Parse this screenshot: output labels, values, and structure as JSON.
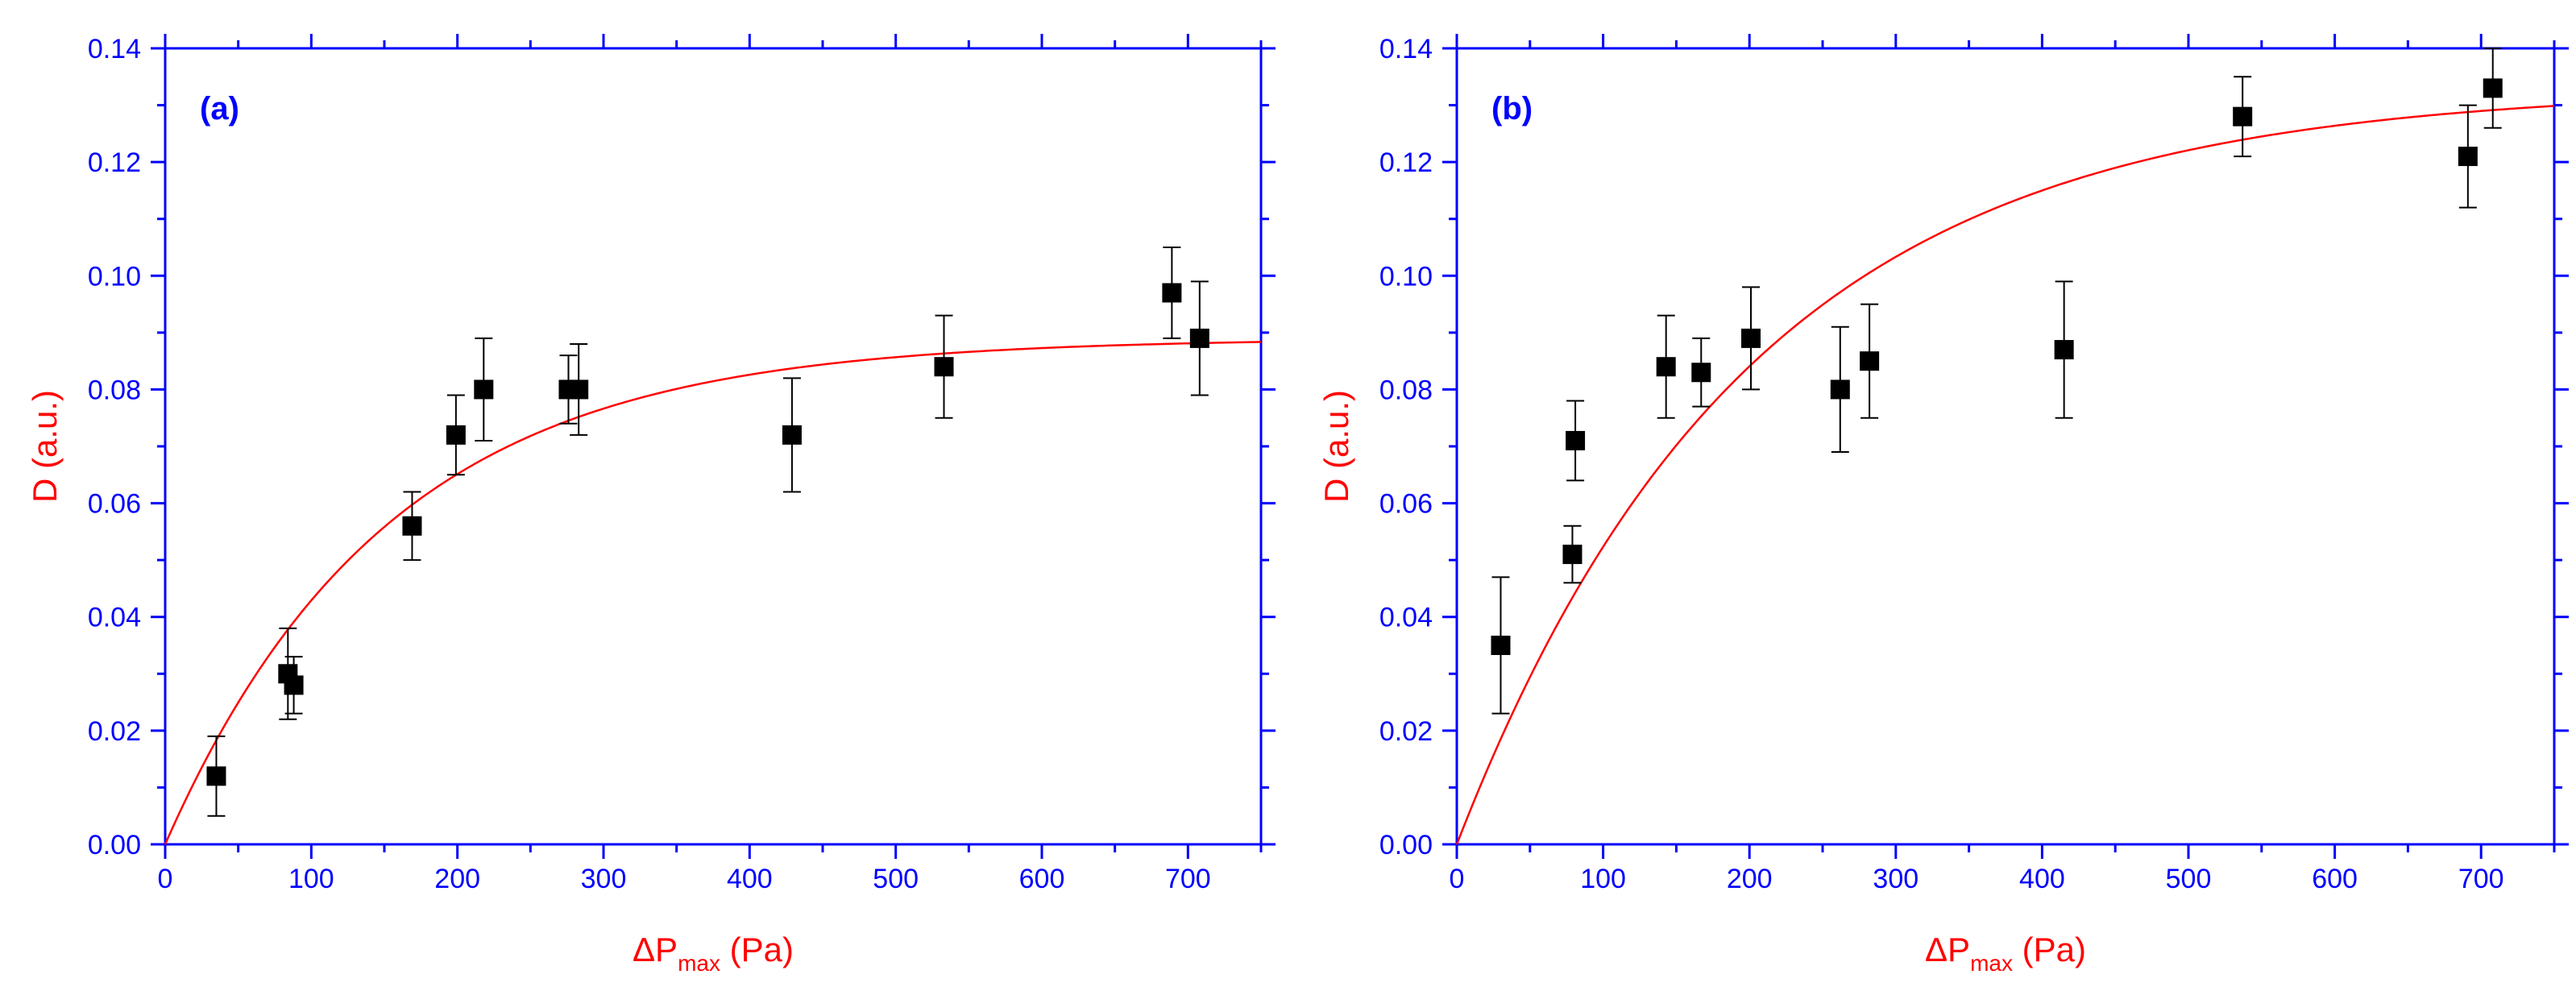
{
  "colors": {
    "axis": "#0000ff",
    "fit": "#ff0000",
    "marker": "#000000",
    "errorbar": "#000000"
  },
  "chart_data": [
    {
      "type": "scatter",
      "panel_label": "(a)",
      "xlabel": {
        "main": "ΔP",
        "sub": "max",
        "unit": " (Pa)"
      },
      "ylabel": "D (a.u.)",
      "xlim": [
        0,
        750
      ],
      "ylim": [
        0,
        0.14
      ],
      "x_ticks": [
        "0",
        "100",
        "200",
        "300",
        "400",
        "500",
        "600",
        "700"
      ],
      "y_ticks": [
        "0.00",
        "0.02",
        "0.04",
        "0.06",
        "0.08",
        "0.10",
        "0.12",
        "0.14"
      ],
      "points": [
        {
          "x": 35,
          "y": 0.012,
          "err": 0.007
        },
        {
          "x": 84,
          "y": 0.03,
          "err": 0.008
        },
        {
          "x": 88,
          "y": 0.028,
          "err": 0.005
        },
        {
          "x": 169,
          "y": 0.056,
          "err": 0.006
        },
        {
          "x": 199,
          "y": 0.072,
          "err": 0.007
        },
        {
          "x": 218,
          "y": 0.08,
          "err": 0.009
        },
        {
          "x": 276,
          "y": 0.08,
          "err": 0.006
        },
        {
          "x": 283,
          "y": 0.08,
          "err": 0.008
        },
        {
          "x": 429,
          "y": 0.072,
          "err": 0.01
        },
        {
          "x": 533,
          "y": 0.084,
          "err": 0.009
        },
        {
          "x": 689,
          "y": 0.097,
          "err": 0.008
        },
        {
          "x": 708,
          "y": 0.089,
          "err": 0.01
        }
      ],
      "fit": {
        "model": "y = A*(1 - exp(-x/t))",
        "A": 0.089,
        "t": 152
      }
    },
    {
      "type": "scatter",
      "panel_label": "(b)",
      "xlabel": {
        "main": "ΔP",
        "sub": "max",
        "unit": " (Pa)"
      },
      "ylabel": "D (a.u.)",
      "xlim": [
        0,
        750
      ],
      "ylim": [
        0,
        0.14
      ],
      "x_ticks": [
        "0",
        "100",
        "200",
        "300",
        "400",
        "500",
        "600",
        "700"
      ],
      "y_ticks": [
        "0.00",
        "0.02",
        "0.04",
        "0.06",
        "0.08",
        "0.10",
        "0.12",
        "0.14"
      ],
      "points": [
        {
          "x": 30,
          "y": 0.035,
          "err": 0.012
        },
        {
          "x": 79,
          "y": 0.051,
          "err": 0.005
        },
        {
          "x": 81,
          "y": 0.071,
          "err": 0.007
        },
        {
          "x": 143,
          "y": 0.084,
          "err": 0.009
        },
        {
          "x": 167,
          "y": 0.083,
          "err": 0.006
        },
        {
          "x": 201,
          "y": 0.089,
          "err": 0.009
        },
        {
          "x": 262,
          "y": 0.08,
          "err": 0.011
        },
        {
          "x": 282,
          "y": 0.085,
          "err": 0.01
        },
        {
          "x": 415,
          "y": 0.087,
          "err": 0.012
        },
        {
          "x": 537,
          "y": 0.128,
          "err": 0.007
        },
        {
          "x": 691,
          "y": 0.121,
          "err": 0.009
        },
        {
          "x": 708,
          "y": 0.133,
          "err": 0.007
        }
      ],
      "fit": {
        "model": "y = A*(1 - exp(-x/t))",
        "A": 0.133,
        "t": 200
      }
    }
  ]
}
